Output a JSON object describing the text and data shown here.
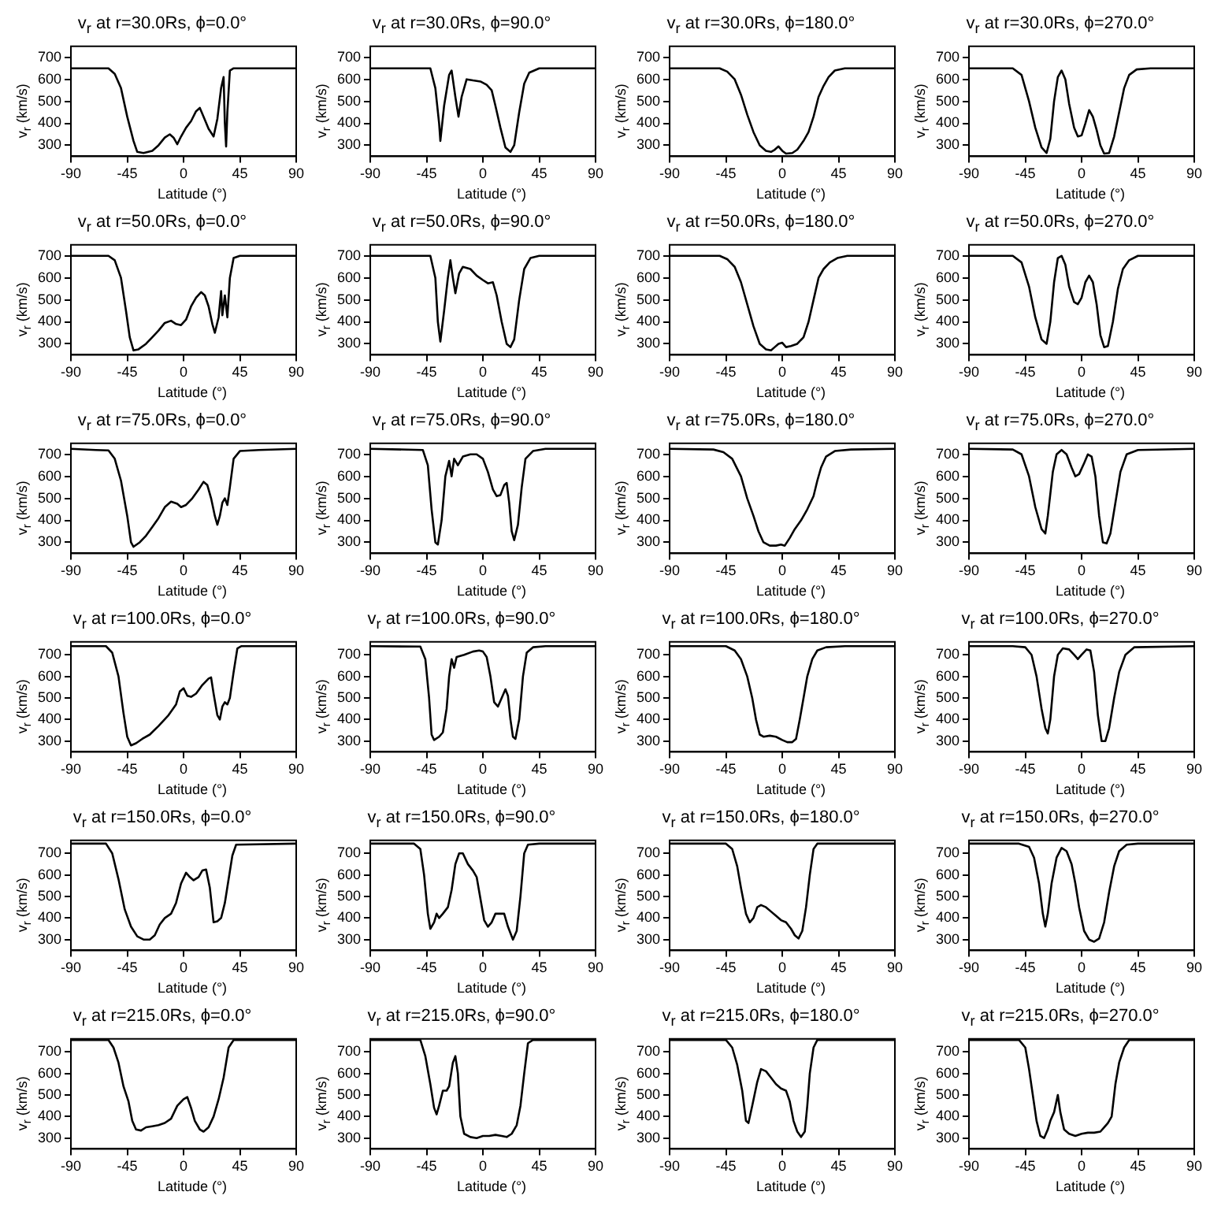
{
  "chart_data": [
    {
      "type": "line",
      "title": "v$_{r}$ at r=30.0Rs, ϕ=0.0°",
      "xlabel": "Latitude (°)",
      "ylabel": "v$_{r}$ (km/s)",
      "color": "#000000",
      "xlim": [
        -90,
        90
      ],
      "xticks": [
        -90,
        -45,
        0,
        45,
        90
      ],
      "ylim": [
        250,
        750
      ],
      "yticks": [
        300,
        400,
        500,
        600,
        700
      ],
      "x": [
        -90,
        -60,
        -55,
        -50,
        -45,
        -40,
        -37,
        -32,
        -25,
        -20,
        -15,
        -11,
        -8,
        -5,
        -2,
        2,
        6,
        10,
        13,
        16,
        20,
        24,
        27,
        30,
        32,
        33,
        34,
        35,
        37,
        40,
        90
      ],
      "values": [
        650,
        650,
        625,
        560,
        430,
        320,
        270,
        265,
        275,
        300,
        335,
        350,
        335,
        305,
        340,
        380,
        410,
        455,
        470,
        430,
        375,
        340,
        420,
        560,
        610,
        400,
        295,
        450,
        640,
        650,
        650
      ]
    },
    {
      "type": "line",
      "title": "v$_{r}$ at r=30.0Rs, ϕ=90.0°",
      "xlabel": "Latitude (°)",
      "ylabel": "v$_{r}$ (km/s)",
      "color": "#000000",
      "xlim": [
        -90,
        90
      ],
      "xticks": [
        -90,
        -45,
        0,
        45,
        90
      ],
      "ylim": [
        250,
        750
      ],
      "yticks": [
        300,
        400,
        500,
        600,
        700
      ],
      "x": [
        -90,
        -42,
        -38,
        -35,
        -34,
        -31,
        -27,
        -25,
        -22,
        -19.5,
        -17,
        -13,
        -8,
        -2,
        3,
        7,
        10,
        14,
        18,
        22,
        25,
        29,
        33,
        37,
        45,
        90
      ],
      "values": [
        650,
        650,
        560,
        400,
        320,
        480,
        620,
        640,
        520,
        430,
        520,
        600,
        595,
        590,
        575,
        550,
        480,
        380,
        290,
        270,
        300,
        450,
        580,
        630,
        650,
        650
      ]
    },
    {
      "type": "line",
      "title": "v$_{r}$ at r=30.0Rs, ϕ=180.0°",
      "xlabel": "Latitude (°)",
      "ylabel": "v$_{r}$ (km/s)",
      "color": "#000000",
      "xlim": [
        -90,
        90
      ],
      "xticks": [
        -90,
        -45,
        0,
        45,
        90
      ],
      "ylim": [
        250,
        750
      ],
      "yticks": [
        300,
        400,
        500,
        600,
        700
      ],
      "x": [
        -90,
        -50,
        -44,
        -38,
        -33,
        -28,
        -23,
        -18,
        -13,
        -9,
        -6,
        -3,
        0,
        3,
        8,
        12,
        17,
        21,
        25,
        29,
        33,
        37,
        42,
        50,
        90
      ],
      "values": [
        650,
        650,
        635,
        600,
        530,
        440,
        360,
        300,
        275,
        270,
        280,
        295,
        275,
        262,
        265,
        280,
        320,
        360,
        430,
        520,
        570,
        610,
        640,
        650,
        650
      ]
    },
    {
      "type": "line",
      "title": "v$_{r}$ at r=30.0Rs, ϕ=270.0°",
      "xlabel": "Latitude (°)",
      "ylabel": "v$_{r}$ (km/s)",
      "color": "#000000",
      "xlim": [
        -90,
        90
      ],
      "xticks": [
        -90,
        -45,
        0,
        45,
        90
      ],
      "ylim": [
        250,
        750
      ],
      "yticks": [
        300,
        400,
        500,
        600,
        700
      ],
      "x": [
        -90,
        -55,
        -48,
        -42,
        -37,
        -32,
        -28,
        -25,
        -22,
        -19,
        -16,
        -13,
        -10,
        -6,
        -3,
        0,
        3,
        6,
        9,
        12,
        15,
        18,
        22,
        26,
        30,
        34,
        38,
        44,
        55,
        90
      ],
      "values": [
        650,
        650,
        620,
        500,
        380,
        290,
        265,
        330,
        500,
        610,
        640,
        600,
        490,
        380,
        340,
        345,
        400,
        460,
        430,
        370,
        300,
        262,
        265,
        340,
        450,
        560,
        620,
        645,
        650,
        650
      ]
    },
    {
      "type": "line",
      "title": "v$_{r}$ at r=50.0Rs, ϕ=0.0°",
      "xlabel": "Latitude (°)",
      "ylabel": "v$_{r}$ (km/s)",
      "color": "#000000",
      "xlim": [
        -90,
        90
      ],
      "xticks": [
        -90,
        -45,
        0,
        45,
        90
      ],
      "ylim": [
        250,
        750
      ],
      "yticks": [
        300,
        400,
        500,
        600,
        700
      ],
      "x": [
        -90,
        -60,
        -55,
        -50,
        -46,
        -43,
        -40,
        -36,
        -30,
        -25,
        -20,
        -15,
        -10,
        -6,
        -2,
        2,
        6,
        10,
        14,
        17,
        20,
        23,
        25,
        28,
        30,
        31,
        33,
        35,
        37,
        40,
        45,
        90
      ],
      "values": [
        700,
        700,
        680,
        600,
        450,
        330,
        270,
        275,
        300,
        330,
        360,
        395,
        405,
        390,
        385,
        410,
        470,
        510,
        535,
        520,
        470,
        390,
        350,
        420,
        540,
        430,
        520,
        420,
        600,
        690,
        700,
        700
      ]
    },
    {
      "type": "line",
      "title": "v$_{r}$ at r=50.0Rs, ϕ=90.0°",
      "xlabel": "Latitude (°)",
      "ylabel": "v$_{r}$ (km/s)",
      "color": "#000000",
      "xlim": [
        -90,
        90
      ],
      "xticks": [
        -90,
        -45,
        0,
        45,
        90
      ],
      "ylim": [
        250,
        750
      ],
      "yticks": [
        300,
        400,
        500,
        600,
        700
      ],
      "x": [
        -90,
        -42,
        -38,
        -36,
        -34,
        -31,
        -28,
        -26,
        -24,
        -22,
        -19,
        -16,
        -10,
        -5,
        0,
        4,
        8,
        11,
        15,
        19,
        22,
        25,
        29,
        33,
        38,
        45,
        90
      ],
      "values": [
        700,
        700,
        600,
        400,
        310,
        450,
        600,
        680,
        600,
        530,
        620,
        650,
        640,
        610,
        590,
        575,
        580,
        520,
        400,
        300,
        285,
        320,
        500,
        640,
        690,
        700,
        700
      ]
    },
    {
      "type": "line",
      "title": "v$_{r}$ at r=50.0Rs, ϕ=180.0°",
      "xlabel": "Latitude (°)",
      "ylabel": "v$_{r}$ (km/s)",
      "color": "#000000",
      "xlim": [
        -90,
        90
      ],
      "xticks": [
        -90,
        -45,
        0,
        45,
        90
      ],
      "ylim": [
        250,
        750
      ],
      "yticks": [
        300,
        400,
        500,
        600,
        700
      ],
      "x": [
        -90,
        -50,
        -44,
        -38,
        -33,
        -28,
        -23,
        -18,
        -13,
        -9,
        -6,
        -3,
        0,
        3,
        7,
        12,
        17,
        21,
        25,
        29,
        33,
        38,
        44,
        52,
        90
      ],
      "values": [
        700,
        700,
        685,
        650,
        580,
        480,
        380,
        300,
        275,
        270,
        285,
        300,
        305,
        285,
        290,
        300,
        330,
        400,
        500,
        600,
        640,
        670,
        690,
        700,
        700
      ]
    },
    {
      "type": "line",
      "title": "v$_{r}$ at r=50.0Rs, ϕ=270.0°",
      "xlabel": "Latitude (°)",
      "ylabel": "v$_{r}$ (km/s)",
      "color": "#000000",
      "xlim": [
        -90,
        90
      ],
      "xticks": [
        -90,
        -45,
        0,
        45,
        90
      ],
      "ylim": [
        250,
        750
      ],
      "yticks": [
        300,
        400,
        500,
        600,
        700
      ],
      "x": [
        -90,
        -55,
        -48,
        -42,
        -37,
        -32,
        -28,
        -25,
        -22,
        -19,
        -16,
        -13,
        -10,
        -6,
        -3,
        0,
        3,
        6,
        9,
        12,
        15,
        18,
        21,
        25,
        29,
        33,
        38,
        45,
        90
      ],
      "values": [
        700,
        700,
        670,
        560,
        420,
        320,
        300,
        400,
        580,
        690,
        700,
        660,
        560,
        490,
        480,
        510,
        580,
        610,
        580,
        480,
        340,
        285,
        290,
        400,
        550,
        640,
        680,
        700,
        700
      ]
    },
    {
      "type": "line",
      "title": "v$_{r}$ at r=75.0Rs, ϕ=0.0°",
      "xlabel": "Latitude (°)",
      "ylabel": "v$_{r}$ (km/s)",
      "color": "#000000",
      "xlim": [
        -90,
        90
      ],
      "xticks": [
        -90,
        -45,
        0,
        45,
        90
      ],
      "ylim": [
        250,
        750
      ],
      "yticks": [
        300,
        400,
        500,
        600,
        700
      ],
      "x": [
        -90,
        -70,
        -60,
        -55,
        -50,
        -45,
        -42,
        -40,
        -35,
        -30,
        -25,
        -20,
        -15,
        -10,
        -5,
        -2,
        2,
        7,
        12,
        16,
        19,
        22,
        25,
        27,
        29,
        31,
        33,
        35,
        37,
        40,
        45,
        60,
        90
      ],
      "values": [
        725,
        720,
        718,
        680,
        580,
        420,
        300,
        280,
        300,
        330,
        370,
        410,
        460,
        485,
        475,
        460,
        470,
        500,
        540,
        575,
        560,
        500,
        420,
        380,
        420,
        480,
        500,
        470,
        550,
        680,
        715,
        720,
        725
      ]
    },
    {
      "type": "line",
      "title": "v$_{r}$ at r=75.0Rs, ϕ=90.0°",
      "xlabel": "Latitude (°)",
      "ylabel": "v$_{r}$ (km/s)",
      "color": "#000000",
      "xlim": [
        -90,
        90
      ],
      "xticks": [
        -90,
        -45,
        0,
        45,
        90
      ],
      "ylim": [
        250,
        750
      ],
      "yticks": [
        300,
        400,
        500,
        600,
        700
      ],
      "x": [
        -90,
        -48,
        -44,
        -41,
        -38,
        -36,
        -33,
        -30,
        -27,
        -25,
        -23,
        -20,
        -16,
        -10,
        -5,
        0,
        4,
        8,
        11,
        14,
        17,
        19,
        21,
        23,
        25,
        28,
        31,
        34,
        40,
        50,
        90
      ],
      "values": [
        725,
        720,
        650,
        450,
        300,
        290,
        400,
        600,
        670,
        600,
        680,
        650,
        690,
        700,
        700,
        680,
        620,
        540,
        510,
        515,
        560,
        570,
        480,
        350,
        310,
        380,
        550,
        680,
        715,
        725,
        725
      ]
    },
    {
      "type": "line",
      "title": "v$_{r}$ at r=75.0Rs, ϕ=180.0°",
      "xlabel": "Latitude (°)",
      "ylabel": "v$_{r}$ (km/s)",
      "color": "#000000",
      "xlim": [
        -90,
        90
      ],
      "xticks": [
        -90,
        -45,
        0,
        45,
        90
      ],
      "ylim": [
        250,
        750
      ],
      "yticks": [
        300,
        400,
        500,
        600,
        700
      ],
      "x": [
        -90,
        -55,
        -47,
        -40,
        -33,
        -28,
        -23,
        -19,
        -15,
        -10,
        -5,
        -1,
        2,
        6,
        10,
        15,
        20,
        25,
        28,
        31,
        35,
        42,
        55,
        90
      ],
      "values": [
        725,
        722,
        710,
        680,
        600,
        500,
        420,
        350,
        300,
        285,
        285,
        290,
        285,
        320,
        360,
        400,
        450,
        510,
        580,
        640,
        690,
        715,
        722,
        725
      ]
    },
    {
      "type": "line",
      "title": "v$_{r}$ at r=75.0Rs, ϕ=270.0°",
      "xlabel": "Latitude (°)",
      "ylabel": "v$_{r}$ (km/s)",
      "color": "#000000",
      "xlim": [
        -90,
        90
      ],
      "xticks": [
        -90,
        -45,
        0,
        45,
        90
      ],
      "ylim": [
        250,
        750
      ],
      "yticks": [
        300,
        400,
        500,
        600,
        700
      ],
      "x": [
        -90,
        -55,
        -48,
        -42,
        -37,
        -32,
        -29,
        -27,
        -23,
        -20,
        -16,
        -12,
        -8,
        -5,
        -2,
        2,
        5,
        8,
        11,
        14,
        17,
        20,
        23,
        27,
        31,
        36,
        45,
        90
      ],
      "values": [
        725,
        722,
        700,
        600,
        460,
        360,
        340,
        420,
        620,
        700,
        720,
        700,
        640,
        600,
        610,
        660,
        700,
        690,
        600,
        420,
        300,
        295,
        340,
        480,
        620,
        700,
        720,
        725
      ]
    },
    {
      "type": "line",
      "title": "v$_{r}$ at r=100.0Rs, ϕ=0.0°",
      "xlabel": "Latitude (°)",
      "ylabel": "v$_{r}$ (km/s)",
      "color": "#000000",
      "xlim": [
        -90,
        90
      ],
      "xticks": [
        -90,
        -45,
        0,
        45,
        90
      ],
      "ylim": [
        250,
        760
      ],
      "yticks": [
        300,
        400,
        500,
        600,
        700
      ],
      "x": [
        -90,
        -62,
        -57,
        -52,
        -48,
        -45,
        -42,
        -38,
        -33,
        -27,
        -20,
        -12,
        -6,
        -3,
        0,
        3,
        6,
        10,
        15,
        20,
        22,
        24,
        27,
        29,
        31,
        33,
        35,
        37,
        40,
        43,
        46,
        90
      ],
      "values": [
        740,
        740,
        710,
        600,
        430,
        320,
        280,
        290,
        310,
        330,
        370,
        420,
        470,
        530,
        545,
        510,
        505,
        520,
        560,
        590,
        595,
        520,
        420,
        400,
        460,
        480,
        470,
        500,
        620,
        730,
        740,
        740
      ]
    },
    {
      "type": "line",
      "title": "v$_{r}$ at r=100.0Rs, ϕ=90.0°",
      "xlabel": "Latitude (°)",
      "ylabel": "v$_{r}$ (km/s)",
      "color": "#000000",
      "xlim": [
        -90,
        90
      ],
      "xticks": [
        -90,
        -45,
        0,
        45,
        90
      ],
      "ylim": [
        250,
        760
      ],
      "yticks": [
        300,
        400,
        500,
        600,
        700
      ],
      "x": [
        -90,
        -50,
        -46,
        -43,
        -41,
        -39,
        -35,
        -32,
        -29,
        -27,
        -25,
        -23,
        -21,
        -15,
        -8,
        -3,
        0,
        3,
        6,
        9,
        12,
        15,
        18,
        20,
        22,
        24,
        26,
        29,
        32,
        35,
        40,
        50,
        90
      ],
      "values": [
        740,
        738,
        680,
        500,
        330,
        305,
        320,
        340,
        450,
        600,
        680,
        640,
        690,
        700,
        715,
        720,
        715,
        690,
        600,
        480,
        460,
        500,
        540,
        510,
        400,
        320,
        310,
        400,
        600,
        710,
        735,
        740,
        740
      ]
    },
    {
      "type": "line",
      "title": "v$_{r}$ at r=100.0Rs, ϕ=180.0°",
      "xlabel": "Latitude (°)",
      "ylabel": "v$_{r}$ (km/s)",
      "color": "#000000",
      "xlim": [
        -90,
        90
      ],
      "xticks": [
        -90,
        -45,
        0,
        45,
        90
      ],
      "ylim": [
        250,
        760
      ],
      "yticks": [
        300,
        400,
        500,
        600,
        700
      ],
      "x": [
        -90,
        -45,
        -38,
        -33,
        -28,
        -24,
        -21,
        -18,
        -15,
        -10,
        -5,
        0,
        4,
        8,
        11,
        14,
        17,
        20,
        24,
        28,
        35,
        50,
        90
      ],
      "values": [
        740,
        740,
        720,
        680,
        600,
        500,
        400,
        330,
        320,
        325,
        320,
        305,
        295,
        295,
        310,
        400,
        500,
        600,
        680,
        720,
        735,
        740,
        740
      ]
    },
    {
      "type": "line",
      "title": "v$_{r}$ at r=100.0Rs, ϕ=270.0°",
      "xlabel": "Latitude (°)",
      "ylabel": "v$_{r}$ (km/s)",
      "color": "#000000",
      "xlim": [
        -90,
        90
      ],
      "xticks": [
        -90,
        -45,
        0,
        45,
        90
      ],
      "ylim": [
        250,
        760
      ],
      "yticks": [
        300,
        400,
        500,
        600,
        700
      ],
      "x": [
        -90,
        -55,
        -45,
        -40,
        -36,
        -32,
        -29,
        -27,
        -25,
        -22,
        -19,
        -15,
        -10,
        -6,
        -3,
        0,
        4,
        7,
        10,
        13,
        16,
        19,
        22,
        26,
        30,
        35,
        42,
        90
      ],
      "values": [
        740,
        740,
        735,
        700,
        600,
        450,
        360,
        335,
        400,
        600,
        700,
        730,
        725,
        700,
        680,
        700,
        725,
        720,
        620,
        420,
        300,
        300,
        360,
        500,
        620,
        700,
        735,
        740
      ]
    },
    {
      "type": "line",
      "title": "v$_{r}$ at r=150.0Rs, ϕ=0.0°",
      "xlabel": "Latitude (°)",
      "ylabel": "v$_{r}$ (km/s)",
      "color": "#000000",
      "xlim": [
        -90,
        90
      ],
      "xticks": [
        -90,
        -45,
        0,
        45,
        90
      ],
      "ylim": [
        250,
        760
      ],
      "yticks": [
        300,
        400,
        500,
        600,
        700
      ],
      "x": [
        -90,
        -62,
        -57,
        -52,
        -47,
        -42,
        -37,
        -32,
        -27,
        -23,
        -19,
        -15,
        -10,
        -6,
        -2,
        2,
        5,
        8,
        12,
        15,
        18,
        21,
        24,
        27,
        30,
        33,
        36,
        39,
        42,
        90
      ],
      "values": [
        745,
        745,
        700,
        580,
        440,
        360,
        315,
        300,
        300,
        320,
        370,
        400,
        420,
        470,
        560,
        610,
        590,
        575,
        590,
        620,
        625,
        540,
        380,
        385,
        400,
        470,
        580,
        690,
        740,
        745
      ]
    },
    {
      "type": "line",
      "title": "v$_{r}$ at r=150.0Rs, ϕ=90.0°",
      "xlabel": "Latitude (°)",
      "ylabel": "v$_{r}$ (km/s)",
      "color": "#000000",
      "xlim": [
        -90,
        90
      ],
      "xticks": [
        -90,
        -45,
        0,
        45,
        90
      ],
      "ylim": [
        250,
        760
      ],
      "yticks": [
        300,
        400,
        500,
        600,
        700
      ],
      "x": [
        -90,
        -55,
        -50,
        -47,
        -44,
        -42,
        -39,
        -37,
        -35,
        -32,
        -28,
        -25,
        -22,
        -19,
        -16,
        -12,
        -8,
        -5,
        -2,
        1,
        4,
        7,
        10,
        14,
        17,
        20,
        24,
        27,
        30,
        33,
        36,
        45,
        90
      ],
      "values": [
        745,
        745,
        720,
        600,
        420,
        350,
        380,
        420,
        400,
        420,
        450,
        530,
        650,
        700,
        700,
        650,
        620,
        590,
        490,
        390,
        360,
        380,
        420,
        420,
        420,
        360,
        300,
        340,
        500,
        700,
        740,
        745,
        745
      ]
    },
    {
      "type": "line",
      "title": "v$_{r}$ at r=150.0Rs, ϕ=180.0°",
      "xlabel": "Latitude (°)",
      "ylabel": "v$_{r}$ (km/s)",
      "color": "#000000",
      "xlim": [
        -90,
        90
      ],
      "xticks": [
        -90,
        -45,
        0,
        45,
        90
      ],
      "ylim": [
        250,
        760
      ],
      "yticks": [
        300,
        400,
        500,
        600,
        700
      ],
      "x": [
        -90,
        -45,
        -40,
        -36,
        -33,
        -29,
        -26,
        -23,
        -20,
        -17,
        -13,
        -9,
        -5,
        -1,
        3,
        7,
        10,
        13,
        16,
        19,
        22,
        25,
        28,
        90
      ],
      "values": [
        745,
        745,
        720,
        640,
        540,
        420,
        380,
        400,
        450,
        460,
        450,
        430,
        410,
        390,
        380,
        350,
        320,
        305,
        340,
        450,
        600,
        720,
        745,
        745
      ]
    },
    {
      "type": "line",
      "title": "v$_{r}$ at r=150.0Rs, ϕ=270.0°",
      "xlabel": "Latitude (°)",
      "ylabel": "v$_{r}$ (km/s)",
      "color": "#000000",
      "xlim": [
        -90,
        90
      ],
      "xticks": [
        -90,
        -45,
        0,
        45,
        90
      ],
      "ylim": [
        250,
        760
      ],
      "yticks": [
        300,
        400,
        500,
        600,
        700
      ],
      "x": [
        -90,
        -50,
        -42,
        -38,
        -34,
        -31,
        -29,
        -27,
        -24,
        -20,
        -16,
        -12,
        -8,
        -5,
        -2,
        2,
        6,
        10,
        14,
        18,
        22,
        26,
        30,
        36,
        45,
        90
      ],
      "values": [
        745,
        745,
        730,
        680,
        560,
        420,
        360,
        420,
        560,
        680,
        725,
        710,
        650,
        560,
        450,
        340,
        300,
        290,
        305,
        380,
        520,
        640,
        710,
        740,
        745,
        745
      ]
    },
    {
      "type": "line",
      "title": "v$_{r}$ at r=215.0Rs, ϕ=0.0°",
      "xlabel": "Latitude (°)",
      "ylabel": "v$_{r}$ (km/s)",
      "color": "#000000",
      "xlim": [
        -90,
        90
      ],
      "xticks": [
        -90,
        -45,
        0,
        45,
        90
      ],
      "ylim": [
        250,
        760
      ],
      "yticks": [
        300,
        400,
        500,
        600,
        700
      ],
      "x": [
        -90,
        -60,
        -56,
        -52,
        -48,
        -44,
        -41,
        -38,
        -34,
        -30,
        -25,
        -20,
        -15,
        -10,
        -5,
        0,
        3,
        6,
        9,
        13,
        16,
        20,
        24,
        28,
        32,
        36,
        40,
        90
      ],
      "values": [
        755,
        755,
        720,
        650,
        540,
        470,
        380,
        340,
        335,
        350,
        355,
        360,
        370,
        390,
        450,
        480,
        490,
        440,
        380,
        340,
        330,
        350,
        400,
        480,
        580,
        720,
        755,
        755
      ]
    },
    {
      "type": "line",
      "title": "v$_{r}$ at r=215.0Rs, ϕ=90.0°",
      "xlabel": "Latitude (°)",
      "ylabel": "v$_{r}$ (km/s)",
      "color": "#000000",
      "xlim": [
        -90,
        90
      ],
      "xticks": [
        -90,
        -45,
        0,
        45,
        90
      ],
      "ylim": [
        250,
        760
      ],
      "yticks": [
        300,
        400,
        500,
        600,
        700
      ],
      "x": [
        -90,
        -50,
        -46,
        -42,
        -39,
        -37,
        -35,
        -32,
        -29,
        -27,
        -24,
        -22,
        -20,
        -18,
        -15,
        -10,
        -5,
        0,
        5,
        10,
        15,
        19,
        23,
        27,
        30,
        33,
        36,
        40,
        90
      ],
      "values": [
        755,
        755,
        680,
        550,
        440,
        410,
        450,
        520,
        520,
        540,
        650,
        680,
        600,
        400,
        320,
        305,
        300,
        310,
        310,
        315,
        310,
        305,
        320,
        360,
        450,
        600,
        740,
        755,
        755
      ]
    },
    {
      "type": "line",
      "title": "v$_{r}$ at r=215.0Rs, ϕ=180.0°",
      "xlabel": "Latitude (°)",
      "ylabel": "v$_{r}$ (km/s)",
      "color": "#000000",
      "xlim": [
        -90,
        90
      ],
      "xticks": [
        -90,
        -45,
        0,
        45,
        90
      ],
      "ylim": [
        250,
        760
      ],
      "yticks": [
        300,
        400,
        500,
        600,
        700
      ],
      "x": [
        -90,
        -45,
        -40,
        -36,
        -32,
        -29,
        -27,
        -24,
        -20,
        -17,
        -13,
        -9,
        -5,
        -1,
        3,
        6,
        9,
        12,
        15,
        18,
        20,
        22,
        25,
        28,
        90
      ],
      "values": [
        755,
        755,
        720,
        640,
        520,
        380,
        370,
        450,
        560,
        620,
        610,
        580,
        550,
        530,
        520,
        470,
        380,
        330,
        305,
        330,
        450,
        600,
        720,
        755,
        755
      ]
    },
    {
      "type": "line",
      "title": "v$_{r}$ at r=215.0Rs, ϕ=270.0°",
      "xlabel": "Latitude (°)",
      "ylabel": "v$_{r}$ (km/s)",
      "color": "#000000",
      "xlim": [
        -90,
        90
      ],
      "xticks": [
        -90,
        -45,
        0,
        45,
        90
      ],
      "ylim": [
        250,
        760
      ],
      "yticks": [
        300,
        400,
        500,
        600,
        700
      ],
      "x": [
        -90,
        -50,
        -45,
        -42,
        -39,
        -36,
        -33,
        -30,
        -27,
        -25,
        -22,
        -19,
        -17,
        -14,
        -10,
        -5,
        0,
        5,
        10,
        15,
        18,
        21,
        24,
        27,
        30,
        34,
        38,
        90
      ],
      "values": [
        755,
        755,
        720,
        620,
        500,
        380,
        310,
        300,
        340,
        380,
        420,
        500,
        420,
        340,
        320,
        310,
        320,
        325,
        325,
        330,
        350,
        370,
        400,
        550,
        650,
        720,
        755,
        755
      ]
    }
  ]
}
